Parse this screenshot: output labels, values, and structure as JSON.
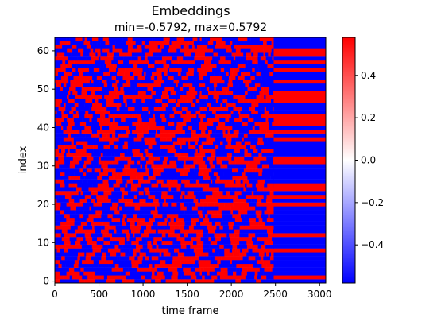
{
  "chart_data": {
    "type": "heatmap",
    "title": "Embeddings",
    "subtitle": "min=-0.5792, max=0.5792",
    "xlabel": "time frame",
    "ylabel": "index",
    "xlim": [
      0,
      3070
    ],
    "ylim": [
      -0.5,
      63.5
    ],
    "x_ticks": [
      0,
      500,
      1000,
      1500,
      2000,
      2500,
      3000
    ],
    "x_tick_labels": [
      "0",
      "500",
      "1000",
      "1500",
      "2000",
      "2500",
      "3000"
    ],
    "y_ticks": [
      0,
      10,
      20,
      30,
      40,
      50,
      60
    ],
    "y_tick_labels": [
      "0",
      "10",
      "20",
      "30",
      "40",
      "50",
      "60"
    ],
    "colorbar": {
      "colormap": "bwr",
      "vmin": -0.5792,
      "vmax": 0.5792,
      "ticks": [
        0.4,
        0.2,
        0.0,
        -0.2,
        -0.4
      ],
      "tick_labels": [
        "0.4",
        "0.2",
        "0.0",
        "−0.2",
        "−0.4"
      ],
      "low_color": "#0000ff",
      "mid_color": "#ffffff",
      "high_color": "#ff0000"
    },
    "noisy_region_end_frame": 2480,
    "steady_value_by_index": [
      -1,
      1,
      -1,
      -1,
      -1,
      -1,
      -1,
      -1,
      1,
      -1,
      -1,
      -1,
      1,
      -1,
      -1,
      -1,
      -1,
      -1,
      -1,
      -1,
      1,
      -1,
      1,
      -1,
      1,
      1,
      -1,
      -1,
      -1,
      -1,
      -1,
      1,
      1,
      -1,
      -1,
      -1,
      -1,
      1,
      -1,
      1,
      -1,
      1,
      1,
      1,
      -1,
      -1,
      -1,
      1,
      1,
      1,
      -1,
      -1,
      1,
      -1,
      -1,
      1,
      -1,
      1,
      -1,
      1,
      1,
      -1,
      -1,
      -1
    ]
  }
}
